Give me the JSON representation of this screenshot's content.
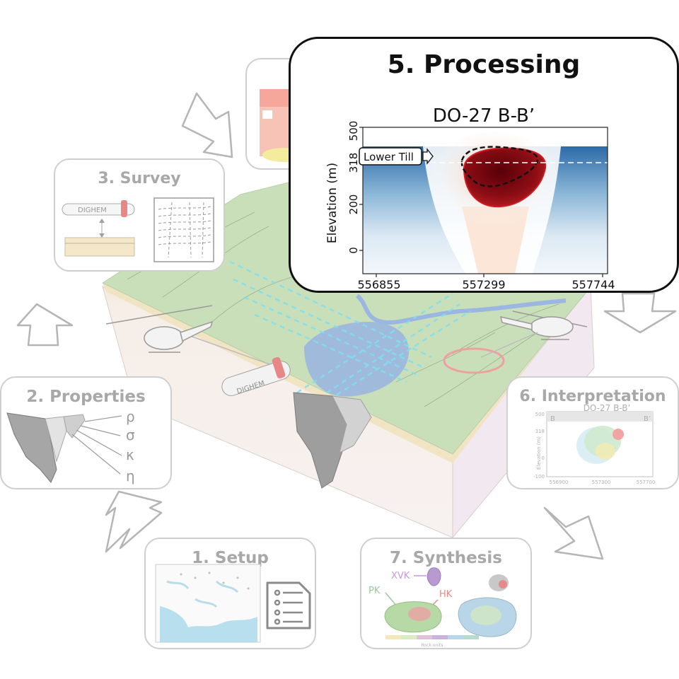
{
  "steps": {
    "setup": {
      "title": "1. Setup"
    },
    "properties": {
      "title": "2. Properties",
      "symbols": [
        "ρ",
        "σ",
        "κ",
        "η"
      ]
    },
    "survey": {
      "title": "3. Survey",
      "instrument_label": "DIGHEM"
    },
    "processing": {
      "title": "5. Processing",
      "chart_title": "DO-27 B-B’",
      "ylabel": "Elevation (m)",
      "yticks": [
        "500",
        "318",
        "200",
        "0"
      ],
      "xticks": [
        "556855",
        "557299",
        "557744"
      ],
      "annotation": "Lower Till"
    },
    "interpretation": {
      "title": "6. Interpretation",
      "chart_title": "DO-27 B-B’",
      "ylabel": "Elevation (m)",
      "yticks": [
        "500",
        "318",
        "0",
        "-100"
      ],
      "xticks": [
        "556900",
        "557300",
        "557700"
      ],
      "left_label": "B",
      "right_label": "B’"
    },
    "synthesis": {
      "title": "7. Synthesis",
      "labels": {
        "xvk": "XVK",
        "pk": "PK",
        "hk": "HK"
      },
      "legend_caption": "Rock units"
    }
  },
  "scene": {
    "instrument_label": "DIGHEM"
  },
  "colors": {
    "card_border": "#cfcfcf",
    "faded_text": "#a8a8a8",
    "active_border": "#111111",
    "anomaly": "#8b0d14",
    "water": "#9bb6e0",
    "land": "#c9dfb9"
  }
}
